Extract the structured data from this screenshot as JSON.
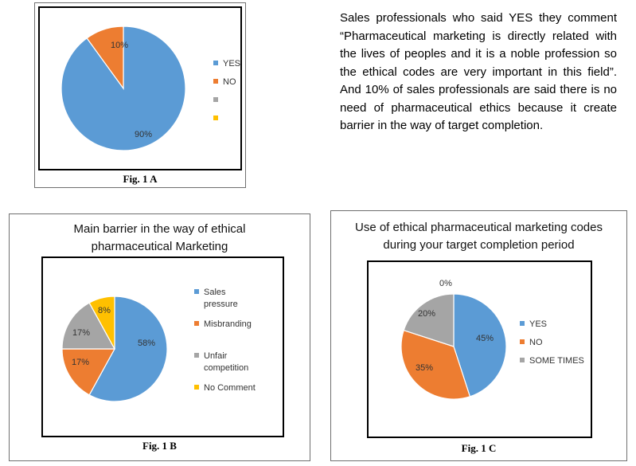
{
  "paragraph": "Sales professionals who said YES they comment “Pharmaceutical marketing is directly related with the lives of peoples and it is a noble profession so the ethical codes are very important in this field”. And 10% of sales professionals are said there is no need of pharmaceutical ethics because it create barrier in the way of target completion.",
  "colors": {
    "blue": "#5b9bd5",
    "orange": "#ed7d31",
    "gray": "#a5a5a5",
    "yellow": "#ffc000"
  },
  "chart_data": [
    {
      "type": "pie",
      "caption": "Fig. 1 A",
      "title": "",
      "slices": [
        {
          "label": "YES",
          "value": 90,
          "data_label": "90%",
          "color": "#5b9bd5"
        },
        {
          "label": "NO",
          "value": 10,
          "data_label": "10%",
          "color": "#ed7d31"
        }
      ],
      "legend": [
        "YES",
        "NO",
        "",
        ""
      ],
      "legend_colors": [
        "#5b9bd5",
        "#ed7d31",
        "#a5a5a5",
        "#ffc000"
      ],
      "legend_position": "right"
    },
    {
      "type": "pie",
      "caption": "Fig. 1 B",
      "title": "Main barrier in the way of ethical pharmaceutical Marketing",
      "slices": [
        {
          "label": "Sales pressure",
          "value": 58,
          "data_label": "58%",
          "color": "#5b9bd5"
        },
        {
          "label": "Misbranding",
          "value": 17,
          "data_label": "17%",
          "color": "#ed7d31"
        },
        {
          "label": "Unfair competition",
          "value": 17,
          "data_label": "17%",
          "color": "#a5a5a5"
        },
        {
          "label": "No Comment",
          "value": 8,
          "data_label": "8%",
          "color": "#ffc000"
        }
      ],
      "legend": [
        "Sales pressure",
        "Misbranding",
        "Unfair competition",
        "No Comment"
      ],
      "legend_position": "right"
    },
    {
      "type": "pie",
      "caption": "Fig. 1 C",
      "title": "Use of ethical pharmaceutical marketing codes during your target completion period",
      "slices": [
        {
          "label": "YES",
          "value": 45,
          "data_label": "45%",
          "color": "#5b9bd5"
        },
        {
          "label": "NO",
          "value": 35,
          "data_label": "35%",
          "color": "#ed7d31"
        },
        {
          "label": "SOME TIMES",
          "value": 20,
          "data_label": "20%",
          "color": "#a5a5a5"
        },
        {
          "label": "",
          "value": 0,
          "data_label": "0%",
          "color": "#ffc000"
        }
      ],
      "legend": [
        "YES",
        "NO",
        "SOME TIMES"
      ],
      "legend_position": "right"
    }
  ]
}
